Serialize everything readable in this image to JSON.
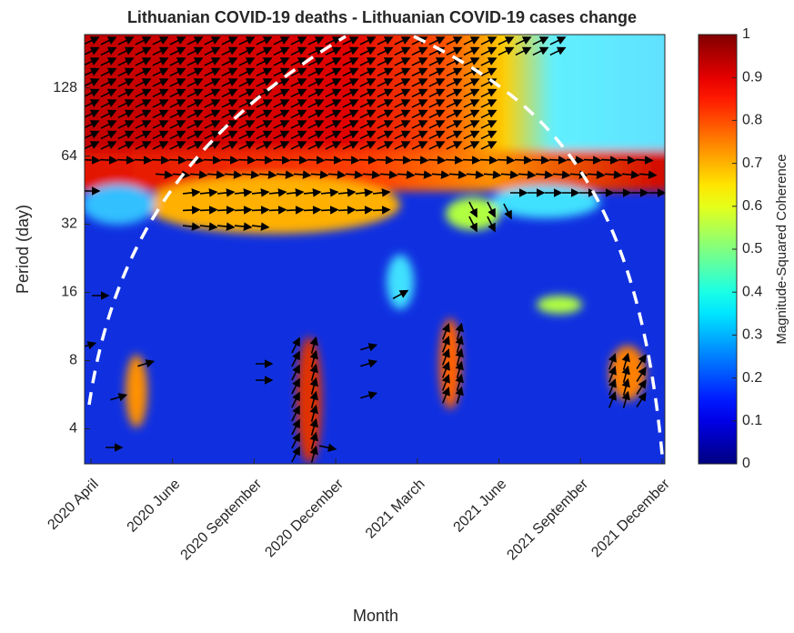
{
  "chart_data": {
    "type": "heatmap",
    "title": "Lithuanian COVID-19 deaths - Lithuanian COVID-19 cases change",
    "x_label": "Month",
    "y_label": "Period (day)",
    "categories": [
      "2020 April",
      "2020 June",
      "2020 September",
      "2020 December",
      "2021 March",
      "2021 June",
      "2021 September",
      "2021 December"
    ],
    "y_scale": "log2",
    "ylim": [
      2.8,
      220
    ],
    "yticks": [
      4,
      8,
      16,
      32,
      64,
      128
    ],
    "colormap": "jet",
    "colorbar_label": "Magnitude-Squared Coherence",
    "clim": [
      0,
      1
    ],
    "colorbar_ticks": [
      0,
      0.1,
      0.2,
      0.3,
      0.4,
      0.5,
      0.6,
      0.7,
      0.8,
      0.9,
      1
    ]
  }
}
